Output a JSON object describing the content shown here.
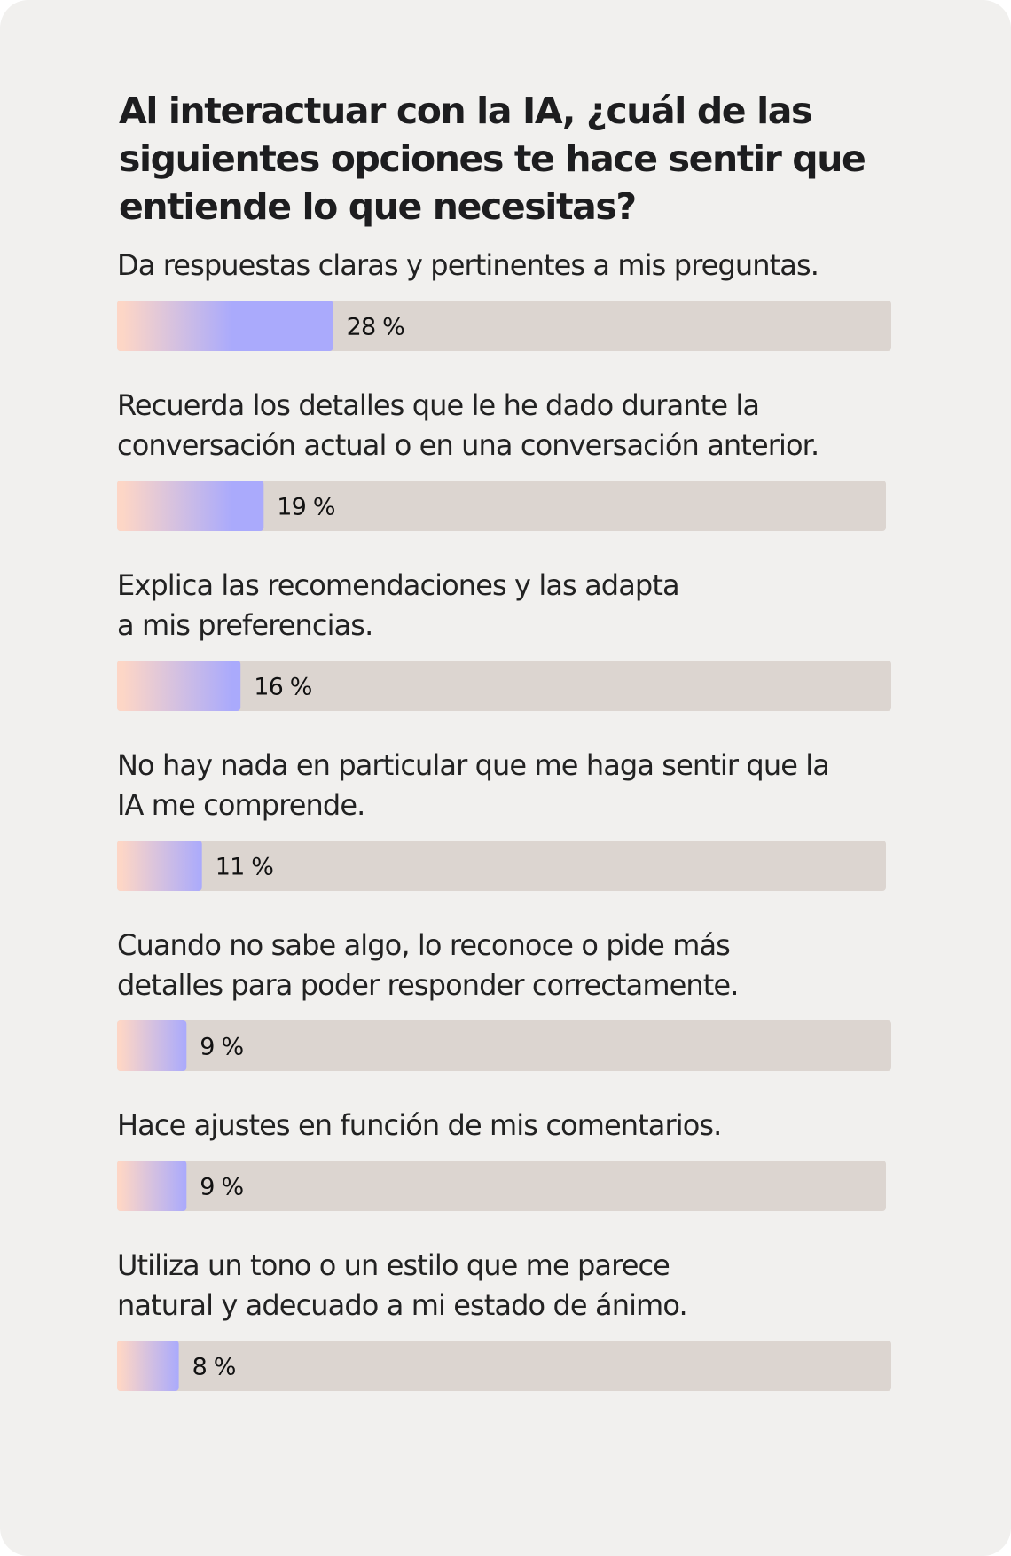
{
  "title": "Al interactuar con la IA, ¿cuál de las siguientes opciones te hace sentir que entiende lo que necesitas?",
  "colors": {
    "card_background": "#f1f0ee",
    "track": "#dcd5d0",
    "bar_start": "#fdd6c6",
    "bar_end": "#aaaafc",
    "text": "#1d1d1f"
  },
  "chart_data": {
    "type": "bar",
    "orientation": "horizontal",
    "value_suffix": " %",
    "xlim": [
      0,
      100
    ],
    "grid": false,
    "legend": "none",
    "categories": [
      [
        "Da respuestas claras y pertinentes a mis preguntas."
      ],
      [
        "Recuerda los detalles que le he dado durante la",
        "conversación actual o en una conversación anterior."
      ],
      [
        "Explica las recomendaciones y las adapta",
        "a mis preferencias."
      ],
      [
        "No hay nada en particular que me haga sentir que la",
        "IA me comprende."
      ],
      [
        "Cuando no sabe algo, lo reconoce o pide más",
        "detalles para poder responder correctamente."
      ],
      [
        "Hace ajustes en función de mis comentarios."
      ],
      [
        "Utiliza un tono o un estilo que me parece",
        "natural y adecuado a mi estado de ánimo."
      ]
    ],
    "values": [
      28,
      19,
      16,
      11,
      9,
      9,
      8
    ],
    "value_labels": [
      "28 %",
      "19 %",
      "16 %",
      "11 %",
      "9 %",
      "9 %",
      "8 %"
    ]
  }
}
